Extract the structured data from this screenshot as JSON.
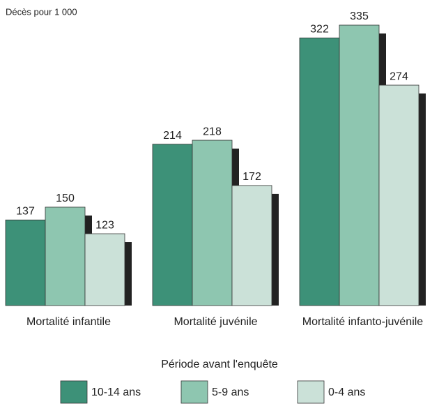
{
  "chart_data": {
    "type": "bar",
    "y_label": "Décès pour 1 000",
    "categories": [
      "Mortalité infantile",
      "Mortalité juvénile",
      "Mortalité infanto-juvénile"
    ],
    "legend_title": "Période avant l'enquête",
    "series": [
      {
        "name": "10-14 ans",
        "color": "#3d9178",
        "values": [
          137,
          214,
          322
        ]
      },
      {
        "name": "5-9 ans",
        "color": "#8ec6b0",
        "values": [
          150,
          218,
          335
        ]
      },
      {
        "name": "0-4 ans",
        "color": "#cbe1d8",
        "values": [
          123,
          172,
          274
        ]
      }
    ],
    "ylim": [
      50,
      335
    ]
  }
}
